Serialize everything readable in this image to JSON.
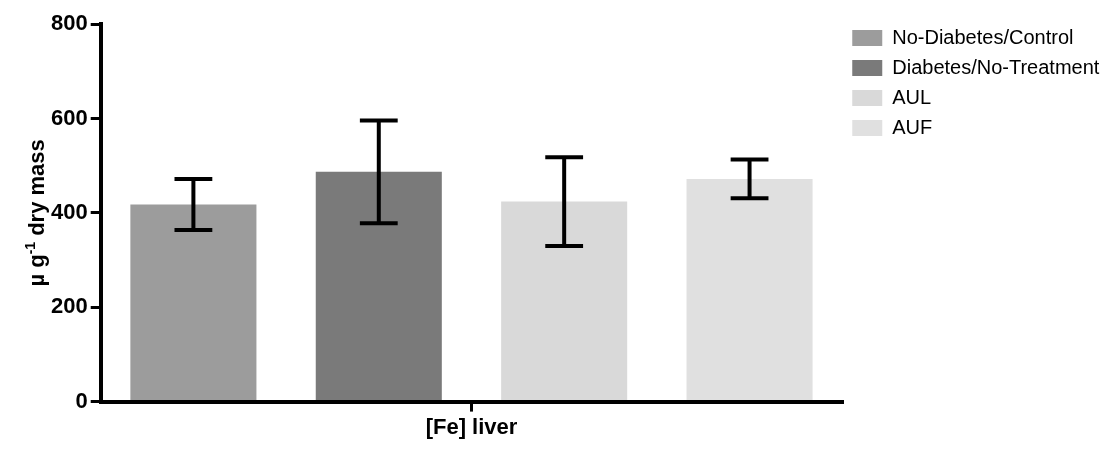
{
  "chart_data": {
    "type": "bar",
    "ylabel": "µ g$^{-1}$ dry mass",
    "categories": [
      "[Fe] liver"
    ],
    "series": [
      {
        "name": "No-Diabetes/Control",
        "color": "#9c9c9c",
        "values": [
          418
        ],
        "errors": [
          54
        ]
      },
      {
        "name": "Diabetes/No-Treatment",
        "color": "#7a7a7a",
        "values": [
          487
        ],
        "errors": [
          109
        ]
      },
      {
        "name": "AUL",
        "color": "#d9d9d9",
        "values": [
          424
        ],
        "errors": [
          94
        ]
      },
      {
        "name": "AUF",
        "color": "#e0e0e0",
        "values": [
          472
        ],
        "errors": [
          41
        ]
      }
    ],
    "ylim": [
      0,
      800
    ],
    "yticks": [
      0,
      200,
      400,
      600,
      800
    ],
    "grid": false,
    "legend": "top right"
  }
}
